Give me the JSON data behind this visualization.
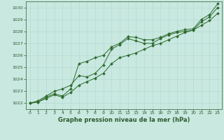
{
  "x": [
    0,
    1,
    2,
    3,
    4,
    5,
    6,
    7,
    8,
    9,
    10,
    11,
    12,
    13,
    14,
    15,
    16,
    17,
    18,
    19,
    20,
    21,
    22,
    23
  ],
  "line1": [
    1022.0,
    1022.1,
    1022.5,
    1022.8,
    1022.6,
    1023.2,
    1025.3,
    1025.5,
    1025.8,
    1026.0,
    1026.7,
    1027.0,
    1027.55,
    1027.5,
    1027.3,
    1027.3,
    1027.5,
    1027.8,
    1028.0,
    1028.15,
    1028.2,
    1029.0,
    1029.4,
    1030.3
  ],
  "line2": [
    1022.0,
    1022.2,
    1022.6,
    1023.0,
    1023.2,
    1023.5,
    1024.3,
    1024.2,
    1024.5,
    1025.2,
    1026.5,
    1026.9,
    1027.4,
    1027.2,
    1027.0,
    1027.0,
    1027.4,
    1027.7,
    1027.9,
    1028.0,
    1028.1,
    1028.8,
    1029.2,
    1030.0
  ],
  "line3": [
    1022.0,
    1022.1,
    1022.4,
    1022.7,
    1022.5,
    1022.9,
    1023.5,
    1023.8,
    1024.1,
    1024.5,
    1025.3,
    1025.8,
    1026.0,
    1026.2,
    1026.5,
    1026.8,
    1027.0,
    1027.3,
    1027.6,
    1027.9,
    1028.1,
    1028.5,
    1028.9,
    1029.5
  ],
  "ylim": [
    1021.5,
    1030.5
  ],
  "yticks": [
    1022,
    1023,
    1024,
    1025,
    1026,
    1027,
    1028,
    1029,
    1030
  ],
  "xlim": [
    -0.5,
    23.5
  ],
  "xticks": [
    0,
    1,
    2,
    3,
    4,
    5,
    6,
    7,
    8,
    9,
    10,
    11,
    12,
    13,
    14,
    15,
    16,
    17,
    18,
    19,
    20,
    21,
    22,
    23
  ],
  "xlabel": "Graphe pression niveau de la mer (hPa)",
  "line_color": "#2d6a2d",
  "bg_color": "#c8e8e0",
  "grid_color": "#b0d8d0",
  "text_color": "#2d5a2d",
  "marker": "D",
  "marker_size": 2.0,
  "linewidth": 0.7
}
